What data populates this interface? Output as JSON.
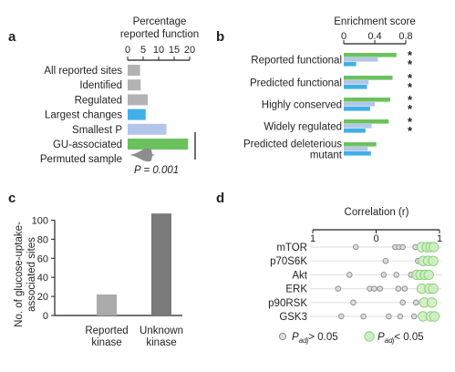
{
  "panels": {
    "a": "a",
    "b": "b",
    "c": "c",
    "d": "d"
  },
  "colors": {
    "gray": "#b3b3b3",
    "blue": "#3fb0e6",
    "lightblue": "#b3c6ea",
    "green": "#6cc15f",
    "darkgray": "#7a7a7a",
    "midgray": "#aaaaaa"
  },
  "chart_data": [
    {
      "panel": "a",
      "type": "bar",
      "orientation": "horizontal",
      "title_lines": [
        "Percentage",
        "reported function"
      ],
      "ticks": [
        0,
        5,
        10,
        15,
        20
      ],
      "xlim": [
        0,
        20
      ],
      "categories": [
        "All reported sites",
        "Identified",
        "Regulated",
        "Largest changes",
        "Smallest P",
        "GU-associated",
        "Permuted sample"
      ],
      "values": [
        4,
        4.2,
        6.5,
        5.8,
        12.5,
        19.5,
        null
      ],
      "bar_colors": [
        "gray",
        "gray",
        "gray",
        "blue",
        "lightblue",
        "green",
        null
      ],
      "permuted_annotation": "P = 0.001"
    },
    {
      "panel": "b",
      "type": "bar",
      "orientation": "horizontal",
      "title": "Enrichment score",
      "ticks": [
        "0",
        "0.4",
        "0.8"
      ],
      "xlim": [
        0,
        0.8
      ],
      "categories": [
        {
          "lines": [
            "Reported functional"
          ]
        },
        {
          "lines": [
            "Predicted functional"
          ]
        },
        {
          "lines": [
            "Highly conserved"
          ]
        },
        {
          "lines": [
            "Widely regulated"
          ]
        },
        {
          "lines": [
            "Predicted deleterious",
            "mutant"
          ]
        }
      ],
      "series": [
        {
          "color": "green",
          "values": [
            0.68,
            0.63,
            0.6,
            0.58,
            0.42
          ]
        },
        {
          "color": "lightblue",
          "values": [
            0.44,
            0.32,
            0.4,
            0.36,
            0.31
          ]
        },
        {
          "color": "blue",
          "values": [
            0.16,
            0.3,
            0.34,
            0.28,
            0.35
          ]
        }
      ],
      "significance": [
        "**",
        "**",
        "**",
        "**",
        ""
      ]
    },
    {
      "panel": "c",
      "type": "bar",
      "ylabel_lines": [
        "No. of glucose-uptake-",
        "associated sites"
      ],
      "yticks": [
        0,
        20,
        40,
        60,
        80,
        100
      ],
      "ylim": [
        0,
        110
      ],
      "categories": [
        {
          "lines": [
            "Reported",
            "kinase"
          ]
        },
        {
          "lines": [
            "Unknown",
            "kinase"
          ]
        }
      ],
      "values": [
        22,
        107
      ],
      "bar_colors": [
        "midgray",
        "darkgray"
      ]
    },
    {
      "panel": "d",
      "type": "scatter",
      "title": "Correlation (r)",
      "ticks": [
        "1",
        "0",
        "1"
      ],
      "xlim": [
        -1,
        1
      ],
      "categories": [
        "mTOR",
        "p70S6K",
        "Akt",
        "ERK",
        "p90RSK",
        "GSK3"
      ],
      "points": [
        {
          "row": 0,
          "r": -0.32,
          "sig": false
        },
        {
          "row": 0,
          "r": 0.3,
          "sig": false
        },
        {
          "row": 0,
          "r": 0.36,
          "sig": false
        },
        {
          "row": 0,
          "r": 0.42,
          "sig": false
        },
        {
          "row": 0,
          "r": 0.62,
          "sig": false
        },
        {
          "row": 0,
          "r": 0.72,
          "sig": true
        },
        {
          "row": 0,
          "r": 0.8,
          "sig": true
        },
        {
          "row": 0,
          "r": 0.86,
          "sig": true
        },
        {
          "row": 0,
          "r": 0.91,
          "sig": true
        },
        {
          "row": 1,
          "r": 0.15,
          "sig": false
        },
        {
          "row": 1,
          "r": 0.66,
          "sig": false
        },
        {
          "row": 1,
          "r": 0.74,
          "sig": true
        },
        {
          "row": 1,
          "r": 0.82,
          "sig": true
        },
        {
          "row": 1,
          "r": 0.9,
          "sig": true
        },
        {
          "row": 2,
          "r": -0.42,
          "sig": false
        },
        {
          "row": 2,
          "r": 0.12,
          "sig": false
        },
        {
          "row": 2,
          "r": 0.32,
          "sig": false
        },
        {
          "row": 2,
          "r": 0.55,
          "sig": false
        },
        {
          "row": 2,
          "r": 0.64,
          "sig": true
        },
        {
          "row": 2,
          "r": 0.7,
          "sig": true
        },
        {
          "row": 2,
          "r": 0.77,
          "sig": true
        },
        {
          "row": 2,
          "r": 0.83,
          "sig": true
        },
        {
          "row": 3,
          "r": -0.6,
          "sig": false
        },
        {
          "row": 3,
          "r": -0.1,
          "sig": false
        },
        {
          "row": 3,
          "r": -0.03,
          "sig": false
        },
        {
          "row": 3,
          "r": 0.06,
          "sig": false
        },
        {
          "row": 3,
          "r": 0.35,
          "sig": false
        },
        {
          "row": 3,
          "r": 0.45,
          "sig": false
        },
        {
          "row": 3,
          "r": 0.72,
          "sig": true
        },
        {
          "row": 3,
          "r": 0.84,
          "sig": true
        },
        {
          "row": 3,
          "r": 0.9,
          "sig": true
        },
        {
          "row": 4,
          "r": -0.36,
          "sig": false
        },
        {
          "row": 4,
          "r": 0.42,
          "sig": false
        },
        {
          "row": 4,
          "r": 0.63,
          "sig": false
        },
        {
          "row": 4,
          "r": 0.76,
          "sig": true
        },
        {
          "row": 4,
          "r": 0.88,
          "sig": true
        },
        {
          "row": 5,
          "r": -0.55,
          "sig": false
        },
        {
          "row": 5,
          "r": -0.2,
          "sig": false
        },
        {
          "row": 5,
          "r": 0.2,
          "sig": false
        },
        {
          "row": 5,
          "r": 0.38,
          "sig": false
        },
        {
          "row": 5,
          "r": 0.6,
          "sig": false
        },
        {
          "row": 5,
          "r": 0.74,
          "sig": true
        },
        {
          "row": 5,
          "r": 0.86,
          "sig": true
        },
        {
          "row": 5,
          "r": 0.92,
          "sig": true
        }
      ],
      "legend": [
        {
          "kind": "not-significant",
          "label": "> 0.05"
        },
        {
          "kind": "significant",
          "label": "< 0.05"
        }
      ]
    }
  ]
}
